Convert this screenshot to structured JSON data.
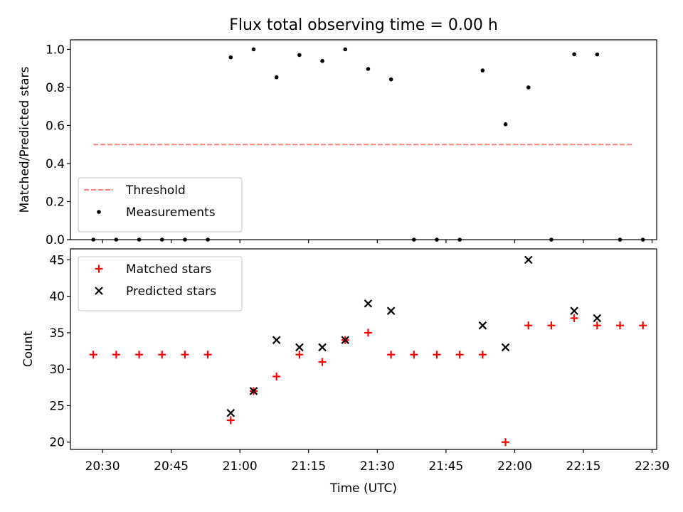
{
  "title": "Flux total observing time = 0.00 h",
  "chart_data": [
    {
      "type": "scatter",
      "ylabel": "Matched/Predicted stars",
      "xlabel": "",
      "xlim": [
        "20:23",
        "22:31"
      ],
      "ylim": [
        0,
        1.05
      ],
      "yticks": [
        0.0,
        0.2,
        0.4,
        0.6,
        0.8,
        1.0
      ],
      "ytick_labels": [
        "0.0",
        "0.2",
        "0.4",
        "0.6",
        "0.8",
        "1.0"
      ],
      "xticks": [
        "20:30",
        "20:45",
        "21:00",
        "21:15",
        "21:30",
        "21:45",
        "22:00",
        "22:15",
        "22:30"
      ],
      "x_tick_labels_shown": false,
      "grid": false,
      "legend_position": "lower left",
      "series": [
        {
          "name": "Threshold",
          "kind": "line",
          "style": "dashed",
          "color": "#ff7f7f",
          "x": [
            "20:28",
            "22:26"
          ],
          "y": [
            0.5,
            0.5
          ]
        },
        {
          "name": "Measurements",
          "kind": "scatter",
          "marker": "dot",
          "color": "#000000",
          "x": [
            "20:28",
            "20:33",
            "20:38",
            "20:43",
            "20:48",
            "20:53",
            "20:58",
            "21:03",
            "21:08",
            "21:13",
            "21:18",
            "21:23",
            "21:28",
            "21:33",
            "21:38",
            "21:43",
            "21:48",
            "21:53",
            "21:58",
            "22:03",
            "22:08",
            "22:13",
            "22:18",
            "22:23",
            "22:28"
          ],
          "y": [
            0.0,
            0.0,
            0.0,
            0.0,
            0.0,
            0.0,
            0.958,
            1.0,
            0.853,
            0.97,
            0.939,
            1.0,
            0.897,
            0.842,
            0.0,
            0.0,
            0.0,
            0.889,
            0.606,
            0.8,
            0.0,
            0.974,
            0.973,
            0.0,
            0.0
          ]
        }
      ]
    },
    {
      "type": "scatter",
      "ylabel": "Count",
      "xlabel": "Time (UTC)",
      "xlim": [
        "20:23",
        "22:31"
      ],
      "ylim": [
        19,
        46.5
      ],
      "yticks": [
        20,
        25,
        30,
        35,
        40,
        45
      ],
      "ytick_labels": [
        "20",
        "25",
        "30",
        "35",
        "40",
        "45"
      ],
      "xticks": [
        "20:30",
        "20:45",
        "21:00",
        "21:15",
        "21:30",
        "21:45",
        "22:00",
        "22:15",
        "22:30"
      ],
      "xtick_labels": [
        "20:30",
        "20:45",
        "21:00",
        "21:15",
        "21:30",
        "21:45",
        "22:00",
        "22:15",
        "22:30"
      ],
      "grid": false,
      "legend_position": "upper left",
      "series": [
        {
          "name": "Matched stars",
          "marker": "plus",
          "color": "#ff0000",
          "x": [
            "20:28",
            "20:33",
            "20:38",
            "20:43",
            "20:48",
            "20:53",
            "20:58",
            "21:03",
            "21:08",
            "21:13",
            "21:18",
            "21:23",
            "21:28",
            "21:33",
            "21:38",
            "21:43",
            "21:48",
            "21:53",
            "21:58",
            "22:03",
            "22:08",
            "22:13",
            "22:18",
            "22:23",
            "22:28"
          ],
          "y": [
            32,
            32,
            32,
            32,
            32,
            32,
            23,
            27,
            29,
            32,
            31,
            34,
            35,
            32,
            32,
            32,
            32,
            32,
            20,
            36,
            36,
            37,
            36,
            36,
            36
          ]
        },
        {
          "name": "Predicted stars",
          "marker": "x",
          "color": "#000000",
          "x": [
            "20:58",
            "21:03",
            "21:08",
            "21:13",
            "21:18",
            "21:23",
            "21:28",
            "21:33",
            "21:53",
            "21:58",
            "22:03",
            "22:13",
            "22:18"
          ],
          "y": [
            24,
            27,
            34,
            33,
            33,
            34,
            39,
            38,
            36,
            33,
            45,
            38,
            37
          ]
        }
      ]
    }
  ]
}
